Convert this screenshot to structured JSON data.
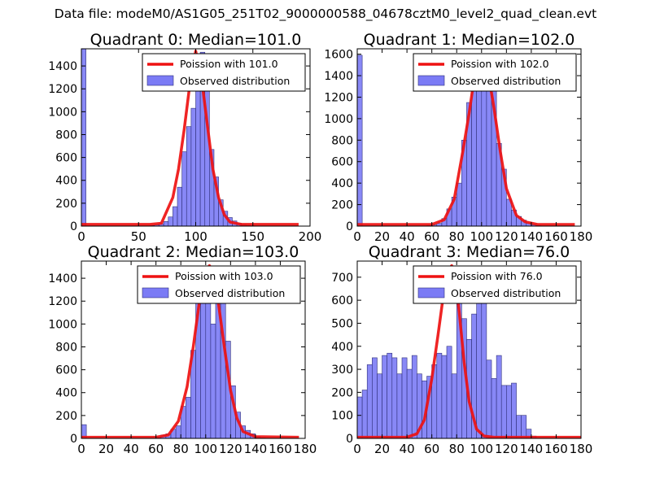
{
  "figure": {
    "suptitle": "Data file: modeM0/AS1G05_251T02_9000000588_04678cztM0_level2_quad_clean.evt"
  },
  "colors": {
    "bars": "#7b7bf5",
    "bar_edge": "#30307a",
    "poisson": "#ee1111",
    "frame": "#000000"
  },
  "chart_data": [
    {
      "type": "bar",
      "title": "Quadrant 0: Median=101.0",
      "xlim": [
        0,
        200
      ],
      "ylim": [
        0,
        1550
      ],
      "xticks": [
        0,
        50,
        100,
        150,
        200
      ],
      "yticks": [
        0,
        200,
        400,
        600,
        800,
        1000,
        1200,
        1400
      ],
      "legend": {
        "placement": "top-right",
        "entries": [
          "Poission with 101.0",
          "Observed distribution"
        ]
      },
      "bins": [
        0,
        4,
        8,
        12,
        16,
        20,
        24,
        28,
        32,
        36,
        40,
        44,
        48,
        52,
        56,
        60,
        64,
        68,
        72,
        76,
        80,
        84,
        88,
        92,
        96,
        100,
        104,
        108,
        112,
        116,
        120,
        124,
        128,
        132,
        136,
        140,
        144,
        148,
        152,
        156,
        160,
        164,
        168,
        172,
        176,
        180,
        184,
        188,
        192,
        196
      ],
      "counts": [
        1550,
        0,
        0,
        0,
        0,
        0,
        0,
        0,
        0,
        0,
        0,
        0,
        0,
        0,
        0,
        5,
        10,
        20,
        40,
        80,
        170,
        340,
        650,
        870,
        1030,
        1360,
        1520,
        1250,
        670,
        430,
        230,
        130,
        75,
        45,
        25,
        12,
        6,
        3,
        0,
        0,
        0,
        0,
        0,
        0,
        0,
        0,
        0,
        0,
        0,
        0
      ],
      "bin_width": 4,
      "poisson": {
        "x": [
          0,
          40,
          60,
          70,
          80,
          85,
          90,
          95,
          100,
          105,
          110,
          115,
          120,
          125,
          130,
          140,
          150,
          190
        ],
        "y": [
          15,
          15,
          15,
          25,
          250,
          500,
          850,
          1250,
          1530,
          1300,
          900,
          500,
          250,
          100,
          35,
          15,
          15,
          15
        ]
      }
    },
    {
      "type": "bar",
      "title": "Quadrant 1: Median=102.0",
      "xlim": [
        0,
        180
      ],
      "ylim": [
        0,
        1650
      ],
      "xticks": [
        0,
        20,
        40,
        60,
        80,
        100,
        120,
        140,
        160,
        180
      ],
      "yticks": [
        0,
        200,
        400,
        600,
        800,
        1000,
        1200,
        1400,
        1600
      ],
      "legend": {
        "placement": "top-right",
        "entries": [
          "Poission with 102.0",
          "Observed distribution"
        ]
      },
      "bins": [
        0,
        4,
        8,
        12,
        16,
        20,
        24,
        28,
        32,
        36,
        40,
        44,
        48,
        52,
        56,
        60,
        64,
        68,
        72,
        76,
        80,
        84,
        88,
        92,
        96,
        100,
        104,
        108,
        112,
        116,
        120,
        124,
        128,
        132,
        136,
        140,
        144,
        148,
        152,
        156,
        160,
        164,
        168,
        172,
        176
      ],
      "counts": [
        1590,
        0,
        0,
        0,
        0,
        0,
        0,
        0,
        0,
        0,
        0,
        0,
        0,
        0,
        5,
        10,
        25,
        70,
        160,
        270,
        400,
        800,
        1150,
        1340,
        1410,
        1550,
        1560,
        1280,
        770,
        530,
        250,
        150,
        90,
        55,
        25,
        12,
        5,
        0,
        0,
        0,
        0,
        0,
        0,
        0,
        0
      ],
      "bin_width": 4,
      "poisson": {
        "x": [
          0,
          60,
          70,
          78,
          85,
          90,
          95,
          100,
          105,
          110,
          115,
          120,
          128,
          135,
          145,
          175
        ],
        "y": [
          15,
          15,
          60,
          250,
          700,
          1050,
          1450,
          1580,
          1450,
          1100,
          700,
          350,
          100,
          40,
          15,
          15
        ]
      }
    },
    {
      "type": "bar",
      "title": "Quadrant 2: Median=103.0",
      "xlim": [
        0,
        180
      ],
      "ylim": [
        0,
        1550
      ],
      "xticks": [
        0,
        20,
        40,
        60,
        80,
        100,
        120,
        140,
        160,
        180
      ],
      "yticks": [
        0,
        200,
        400,
        600,
        800,
        1000,
        1200,
        1400
      ],
      "legend": {
        "placement": "top-right",
        "entries": [
          "Poission with 103.0",
          "Observed distribution"
        ]
      },
      "bins": [
        0,
        4,
        8,
        12,
        16,
        20,
        24,
        28,
        32,
        36,
        40,
        44,
        48,
        52,
        56,
        60,
        64,
        68,
        72,
        76,
        80,
        84,
        88,
        92,
        96,
        100,
        104,
        108,
        112,
        116,
        120,
        124,
        128,
        132,
        136,
        140,
        144,
        148,
        152,
        156,
        160,
        164,
        168,
        172,
        176
      ],
      "counts": [
        120,
        0,
        0,
        0,
        0,
        0,
        0,
        0,
        0,
        0,
        0,
        0,
        0,
        0,
        0,
        10,
        30,
        40,
        80,
        110,
        280,
        360,
        770,
        1250,
        1280,
        1390,
        1000,
        1230,
        1320,
        850,
        460,
        230,
        110,
        70,
        40,
        15,
        5,
        0,
        0,
        0,
        0,
        0,
        0,
        0,
        0
      ],
      "bin_width": 4,
      "poisson": {
        "x": [
          0,
          60,
          70,
          78,
          85,
          90,
          95,
          100,
          103,
          106,
          110,
          115,
          120,
          125,
          130,
          140,
          175
        ],
        "y": [
          10,
          10,
          30,
          150,
          450,
          800,
          1200,
          1460,
          1510,
          1460,
          1200,
          800,
          420,
          180,
          60,
          15,
          10
        ]
      }
    },
    {
      "type": "bar",
      "title": "Quadrant 3: Median=76.0",
      "xlim": [
        0,
        180
      ],
      "ylim": [
        0,
        770
      ],
      "xticks": [
        0,
        20,
        40,
        60,
        80,
        100,
        120,
        140,
        160,
        180
      ],
      "yticks": [
        0,
        100,
        200,
        300,
        400,
        500,
        600,
        700
      ],
      "legend": {
        "placement": "top-right",
        "entries": [
          "Poission with 76.0",
          "Observed distribution"
        ]
      },
      "bins": [
        0,
        4,
        8,
        12,
        16,
        20,
        24,
        28,
        32,
        36,
        40,
        44,
        48,
        52,
        56,
        60,
        64,
        68,
        72,
        76,
        80,
        84,
        88,
        92,
        96,
        100,
        104,
        108,
        112,
        116,
        120,
        124,
        128,
        132,
        136,
        140,
        144,
        148,
        152,
        156,
        160,
        164,
        168,
        172,
        176
      ],
      "counts": [
        180,
        210,
        320,
        350,
        280,
        360,
        370,
        350,
        280,
        350,
        300,
        360,
        280,
        250,
        270,
        320,
        370,
        360,
        400,
        280,
        700,
        520,
        430,
        540,
        650,
        590,
        340,
        260,
        360,
        230,
        230,
        240,
        100,
        100,
        40,
        10,
        0,
        0,
        0,
        0,
        0,
        0,
        0,
        0,
        0
      ],
      "bin_width": 4,
      "poisson": {
        "x": [
          0,
          40,
          48,
          54,
          60,
          65,
          70,
          73,
          76,
          79,
          82,
          86,
          90,
          96,
          102,
          110,
          180
        ],
        "y": [
          5,
          5,
          20,
          80,
          260,
          450,
          650,
          730,
          750,
          700,
          550,
          330,
          160,
          40,
          10,
          5,
          5
        ]
      }
    }
  ]
}
